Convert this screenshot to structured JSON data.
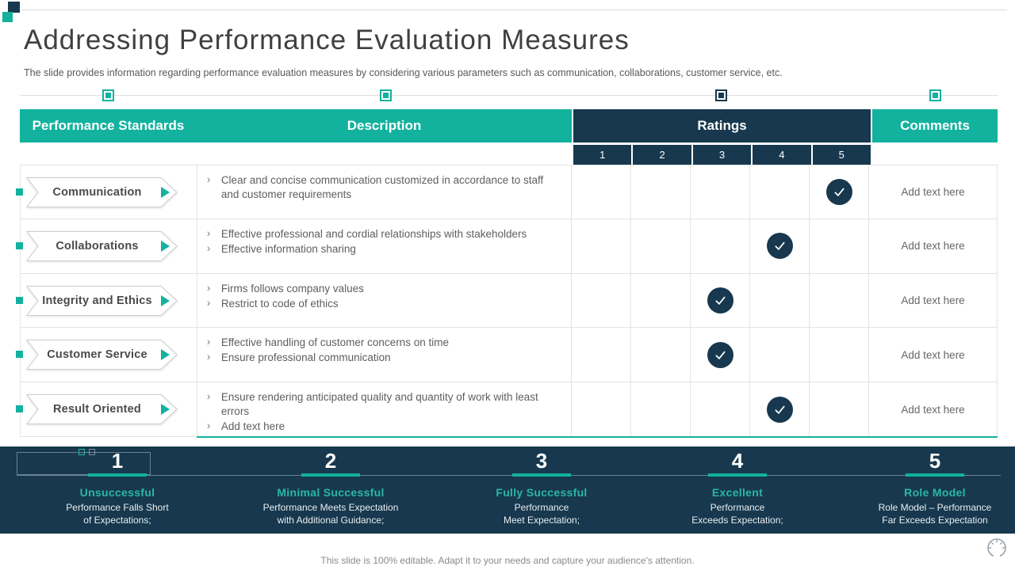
{
  "slide": {
    "title": "Addressing Performance Evaluation Measures",
    "subtitle": "The slide provides information regarding performance evaluation measures by considering various parameters such as communication, collaborations, customer service, etc.",
    "footer_note": "This slide is 100% editable. Adapt it to your needs and capture your audience's attention."
  },
  "colors": {
    "teal": "#12B29E",
    "navy": "#17384E"
  },
  "icons": {
    "logo": "two-squares-logo",
    "row_marker": "play-triangle-icon",
    "rating_mark": "check-circle-icon",
    "footer_dial": "clock-dial-icon"
  },
  "table": {
    "headers": {
      "standards": "Performance Standards",
      "description": "Description",
      "ratings": "Ratings",
      "comments": "Comments"
    },
    "rating_scale": [
      "1",
      "2",
      "3",
      "4",
      "5"
    ],
    "rows": [
      {
        "standard": "Communication",
        "description": [
          "Clear and concise communication customized in accordance to staff and customer requirements"
        ],
        "rating": 5,
        "comment": "Add text here"
      },
      {
        "standard": "Collaborations",
        "description": [
          "Effective professional and cordial relationships with stakeholders",
          "Effective information sharing"
        ],
        "rating": 4,
        "comment": "Add text here"
      },
      {
        "standard": "Integrity and Ethics",
        "description": [
          "Firms follows company values",
          "Restrict to code of ethics"
        ],
        "rating": 3,
        "comment": "Add text here"
      },
      {
        "standard": "Customer Service",
        "description": [
          "Effective handling of customer concerns on time",
          "Ensure professional communication"
        ],
        "rating": 3,
        "comment": "Add text here"
      },
      {
        "standard": "Result Oriented",
        "description": [
          "Ensure rendering anticipated quality and quantity of work with least errors",
          "Add text here"
        ],
        "rating": 4,
        "comment": "Add text here"
      }
    ]
  },
  "legend": [
    {
      "number": "1",
      "label": "Unsuccessful",
      "line1": "Performance  Falls Short",
      "line2": "of Expectations;"
    },
    {
      "number": "2",
      "label": "Minimal Successful",
      "line1": "Performance  Meets Expectation",
      "line2": "with Additional Guidance;"
    },
    {
      "number": "3",
      "label": "Fully Successful",
      "line1": "Performance",
      "line2": "Meet Expectation;"
    },
    {
      "number": "4",
      "label": "Excellent",
      "line1": "Performance",
      "line2": "Exceeds Expectation;"
    },
    {
      "number": "5",
      "label": "Role Model",
      "line1": "Role Model – Performance",
      "line2": "Far Exceeds Expectation"
    }
  ]
}
